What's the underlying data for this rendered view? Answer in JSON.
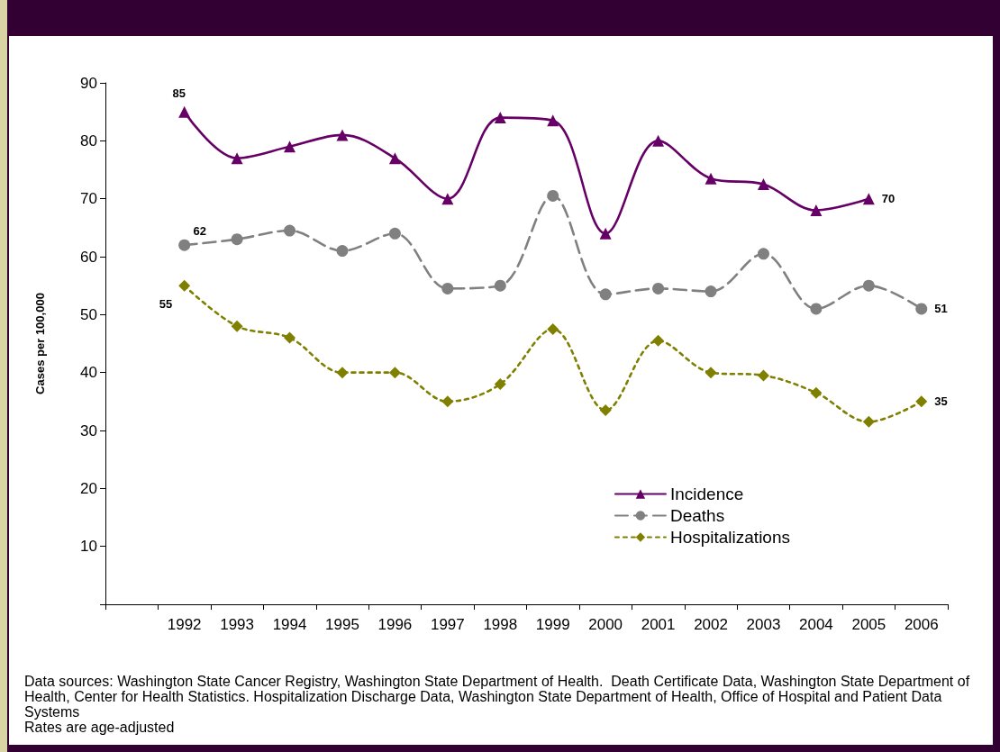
{
  "chart_data": {
    "type": "line",
    "categories": [
      null,
      "1992",
      "1993",
      "1994",
      "1995",
      "1996",
      "1997",
      "1998",
      "1999",
      "2000",
      "2001",
      "2002",
      "2003",
      "2004",
      "2005",
      "2006"
    ],
    "series": [
      {
        "name": "Incidence",
        "color": "#660066",
        "marker": "triangle",
        "line_style": "solid",
        "values": [
          null,
          85,
          77,
          79,
          81,
          77,
          70,
          84,
          83.5,
          64,
          80,
          73.5,
          72.5,
          68,
          70,
          null
        ],
        "value_labels": [
          null,
          "85",
          null,
          null,
          null,
          null,
          null,
          null,
          null,
          null,
          null,
          null,
          null,
          null,
          "70",
          null
        ]
      },
      {
        "name": "Deaths",
        "color": "#808080",
        "marker": "circle",
        "line_style": "dashed",
        "values": [
          null,
          62,
          63,
          64.5,
          61,
          64,
          54.5,
          55,
          70.5,
          53.5,
          54.5,
          54,
          60.5,
          51,
          55,
          51
        ],
        "value_labels": [
          null,
          "62",
          null,
          null,
          null,
          null,
          null,
          null,
          null,
          null,
          null,
          null,
          null,
          null,
          null,
          "51"
        ]
      },
      {
        "name": "Hospitalizations",
        "color": "#808000",
        "marker": "diamond",
        "line_style": "dotted",
        "values": [
          null,
          55,
          48,
          46,
          40,
          40,
          35,
          38,
          47.5,
          33.5,
          45.5,
          40,
          39.5,
          36.5,
          31.5,
          35
        ],
        "value_labels": [
          null,
          "55",
          null,
          null,
          null,
          null,
          null,
          null,
          null,
          null,
          null,
          null,
          null,
          null,
          null,
          "35"
        ]
      }
    ],
    "ylabel": "Cases per 100,000",
    "ylim": [
      0,
      90
    ],
    "yticks": [
      {
        "value": 0,
        "label": null
      },
      10,
      20,
      30,
      40,
      50,
      60,
      70,
      80,
      90
    ],
    "legend": "bottom right",
    "annotations": [
      "Data sources: Washington State Cancer Registry, Washington State Department of Health.  Death Certificate Data, Washington State Department of Health, Center for Health Statistics. Hospitalization Discharge Data, Washington State Department of Health, Office of Hospital and Patient Data Systems",
      "Rates are age-adjusted"
    ]
  }
}
